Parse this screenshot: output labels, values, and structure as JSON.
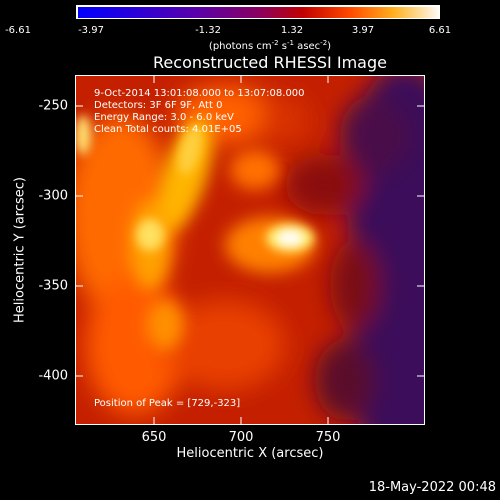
{
  "colorbar": {
    "tick_labels": [
      "-6.61",
      "-3.97",
      "-1.32",
      "1.32",
      "3.97",
      "6.61"
    ],
    "units_text": "(photons cm",
    "units_exp1": "-2",
    "units_mid": " s",
    "units_exp2": "-1",
    "units_mid2": " asec",
    "units_exp3": "-2",
    "units_end": ")",
    "range": [
      -6.61,
      6.61
    ]
  },
  "image": {
    "title": "Reconstructed RHESSI Image",
    "info_lines": [
      " 9-Oct-2014 13:01:08.000 to 13:07:08.000",
      "Detectors: 3F 6F 9F, Att 0",
      "Energy Range: 3.0 - 6.0 keV",
      "Clean     Total counts: 4.01E+05"
    ],
    "peak_text": "Position of Peak = [729,-323]"
  },
  "axes": {
    "xlabel": "Heliocentric X (arcsec)",
    "ylabel": "Heliocentric Y (arcsec)",
    "x_ticks": [
      "650",
      "700",
      "750"
    ],
    "y_ticks": [
      "-250",
      "-300",
      "-350",
      "-400"
    ],
    "xlim": [
      610,
      798
    ],
    "ylim": [
      -428,
      -234
    ]
  },
  "footer": {
    "timestamp": "18-May-2022 00:48"
  }
}
